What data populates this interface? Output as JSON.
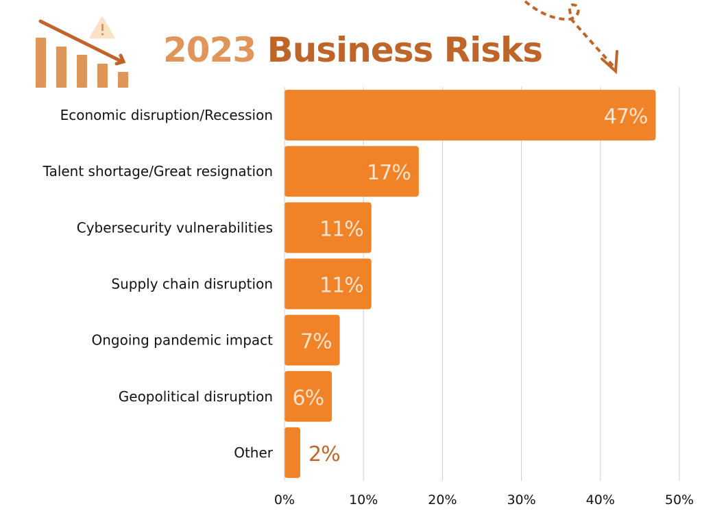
{
  "chart_data": {
    "type": "bar",
    "orientation": "horizontal",
    "title": {
      "year": "2023",
      "text": "Business Risks"
    },
    "categories": [
      "Economic disruption/Recession",
      "Talent shortage/Great resignation",
      "Cybersecurity vulnerabilities",
      "Supply chain disruption",
      "Ongoing pandemic impact",
      "Geopolitical disruption",
      "Other"
    ],
    "values": [
      47,
      17,
      11,
      11,
      7,
      6,
      2
    ],
    "value_labels": [
      "47%",
      "17%",
      "11%",
      "11%",
      "7%",
      "6%",
      "2%"
    ],
    "xlim": [
      0,
      50
    ],
    "xticks": [
      0,
      10,
      20,
      30,
      40,
      50
    ],
    "xtick_labels": [
      "0%",
      "10%",
      "20%",
      "30%",
      "40%",
      "50%"
    ],
    "xlabel": "",
    "ylabel": "",
    "grid": "vertical",
    "colors": {
      "bar": "#F08228",
      "label_inside": "#FCE3CC",
      "label_outside": "#C0652A",
      "grid": "#CCCCCC",
      "title_year": "#E0955A",
      "title_rest": "#C0652A",
      "icon": "#DE9559",
      "arrow": "#C0652A",
      "warning": "#F9E3C8"
    }
  }
}
